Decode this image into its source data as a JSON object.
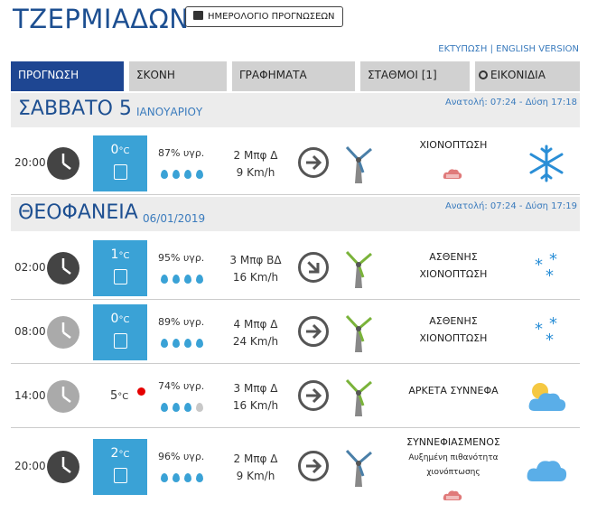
{
  "header": {
    "title": "ΤΖΕΡΜΙΑΔΩΝ",
    "calendar_button": "ΗΜΕΡΟΛΟΓΙΟ ΠΡΟΓΝΩΣΕΩΝ",
    "print_link": "ΕΚΤΥΠΩΣΗ",
    "separator": " | ",
    "english_link": "ENGLISH VERSION"
  },
  "tabs": [
    "ΠΡΟΓΝΩΣΗ",
    "ΣΚΟΝΗ",
    "ΓΡΑΦΗΜΑΤΑ",
    "ΣΤΑΘΜΟΙ [1]",
    "ΕΙΚΟΝΙΔΙΑ"
  ],
  "days": [
    {
      "title": "ΣΑΒΒΑΤΟ 5",
      "subtitle": "ΙΑΝΟΥΑΡΙΟΥ",
      "sun": "Ανατολή: 07:24 - Δύση 17:18"
    },
    {
      "title": "ΘΕΟΦΑΝΕΙΑ",
      "subtitle": "06/01/2019",
      "sun": "Ανατολή: 07:24 - Δύση 17:19"
    }
  ],
  "rows": [
    {
      "time": "20:00",
      "clock": "dark",
      "temp": "0",
      "unit": "°C",
      "humidity": "87% υγρ.",
      "drops_filled": 4,
      "wind_bft": "2 Μπφ Δ",
      "wind_kmh": "9 Km/h",
      "wind_dir": "Δ",
      "condition": "ΧΙΟΝΟΠΤΩΣΗ",
      "condition2": "",
      "icon": "snowflake-icon"
    },
    {
      "time": "02:00",
      "clock": "dark",
      "temp": "1",
      "unit": "°C",
      "humidity": "95% υγρ.",
      "drops_filled": 4,
      "wind_bft": "3 Μπφ ΒΔ",
      "wind_kmh": "16 Km/h",
      "wind_dir": "ΒΔ",
      "condition": "ΑΣΘΕΝΗΣ",
      "condition2": "ΧΙΟΝΟΠΤΩΣΗ",
      "icon": "light-snow-icon"
    },
    {
      "time": "08:00",
      "clock": "light",
      "temp": "0",
      "unit": "°C",
      "humidity": "89% υγρ.",
      "drops_filled": 4,
      "wind_bft": "4 Μπφ Δ",
      "wind_kmh": "24 Km/h",
      "wind_dir": "Δ",
      "condition": "ΑΣΘΕΝΗΣ",
      "condition2": "ΧΙΟΝΟΠΤΩΣΗ",
      "icon": "light-snow-icon"
    },
    {
      "time": "14:00",
      "clock": "light",
      "temp": "5",
      "unit": "°C",
      "humidity": "74% υγρ.",
      "drops_filled": 3,
      "wind_bft": "3 Μπφ Δ",
      "wind_kmh": "16 Km/h",
      "wind_dir": "Δ",
      "condition": "ΑΡΚΕΤΑ ΣΥΝΝΕΦΑ",
      "condition2": "",
      "icon": "partly-cloudy-icon"
    },
    {
      "time": "20:00",
      "clock": "dark",
      "temp": "2",
      "unit": "°C",
      "humidity": "96% υγρ.",
      "drops_filled": 4,
      "wind_bft": "2 Μπφ Δ",
      "wind_kmh": "9 Km/h",
      "wind_dir": "Δ",
      "condition": "ΣΥΝΝΕΦΙΑΣΜΕΝΟΣ",
      "condition2": "Αυξημένη πιθανότητα χιονόπτωσης",
      "icon": "cloudy-icon"
    }
  ],
  "colors": {
    "brand": "#1d4f91",
    "accent": "#3aa2d6",
    "tab_active": "#1e4692",
    "tab": "#d1d1d1",
    "alert": "#e50000"
  }
}
